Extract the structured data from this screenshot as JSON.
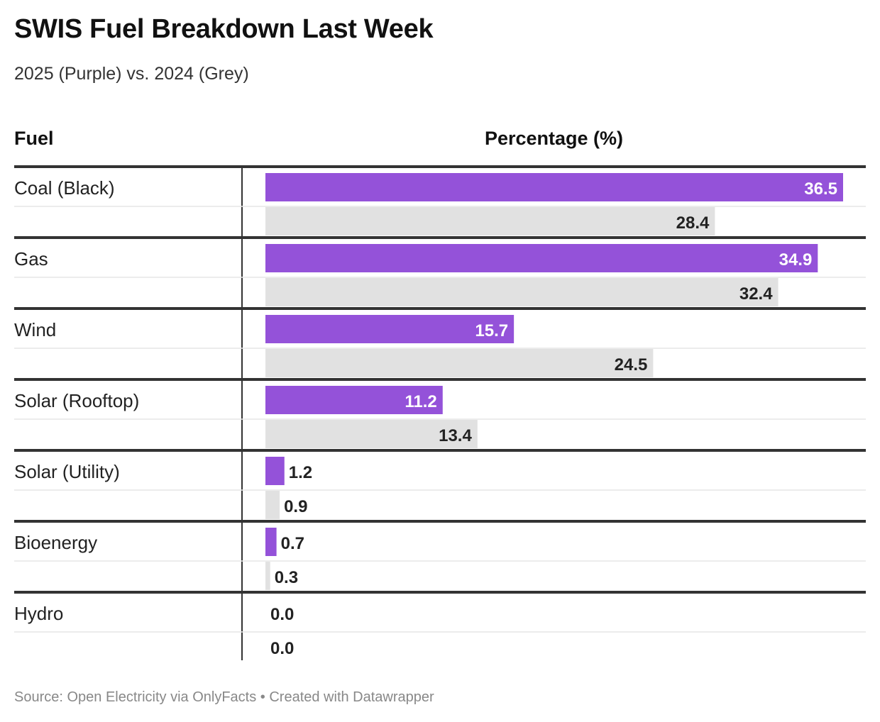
{
  "title": "SWIS Fuel Breakdown Last Week",
  "subtitle": "2025 (Purple) vs. 2024 (Grey)",
  "columns": {
    "fuel": "Fuel",
    "percentage": "Percentage (%)"
  },
  "source": "Source: Open Electricity via OnlyFacts • Created with Datawrapper",
  "colors": {
    "series_2025": "#9452d9",
    "series_2024": "#e1e1e1",
    "row_rule": "#333333",
    "sub_rule": "#e5e5e5"
  },
  "chart_data": {
    "type": "bar",
    "orientation": "horizontal",
    "categories": [
      "Coal (Black)",
      "Gas",
      "Wind",
      "Solar (Rooftop)",
      "Solar (Utility)",
      "Bioenergy",
      "Hydro"
    ],
    "series": [
      {
        "values": [
          36.5,
          34.9,
          15.7,
          11.2,
          1.2,
          0.7,
          0.0
        ],
        "labels": [
          "36.5",
          "34.9",
          "15.7",
          "11.2",
          "1.2",
          "0.7",
          "0.0"
        ]
      },
      {
        "values": [
          28.4,
          32.4,
          24.5,
          13.4,
          0.9,
          0.3,
          0.0
        ],
        "labels": [
          "28.4",
          "32.4",
          "24.5",
          "13.4",
          "0.9",
          "0.3",
          "0.0"
        ]
      }
    ],
    "xlim": [
      0,
      36.5
    ],
    "xlabel": "Percentage (%)",
    "legend": "none",
    "grid": false
  }
}
